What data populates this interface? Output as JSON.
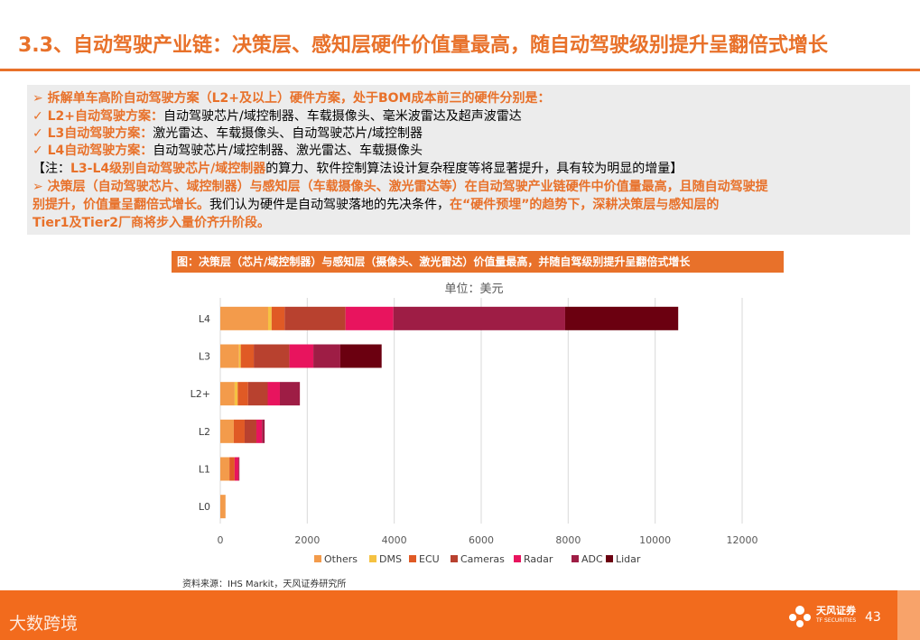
{
  "title": "3.3、自动驾驶产业链：决策层、感知层硬件价值量最高，随自动驾驶级别提升呈翻倍式增长",
  "panel": {
    "line1": "➢ 拆解单车高阶自动驾驶方案（L2+及以上）硬件方案，处于BOM成本前三的硬件分别是：",
    "line2_label": "✓ L2+自动驾驶方案：",
    "line2_text": "自动驾驶芯片/域控制器、车载摄像头、毫米波雷达及超声波雷达",
    "line3_label": "✓ L3自动驾驶方案：",
    "line3_text": "激光雷达、车载摄像头、自动驾驶芯片/域控制器",
    "line4_label": "✓ L4自动驾驶方案：",
    "line4_text": "自动驾驶芯片/域控制器、激光雷达、车载摄像头",
    "line5_a": "【注：",
    "line5_b": "L3-L4级别自动驾驶芯片/域控制器",
    "line5_c": "的算力、软件控制算法设计复杂程度等将显著提升，具有较为明显的增量】",
    "line6_a": "➢ 决策层（自动驾驶芯片、域控制器）与感知层（车载摄像头、激光雷达等）在自动驾驶产业链硬件中价值量最高，且随自动驾驶提",
    "line7_a": "别提升，价值量呈翻倍式增长。",
    "line7_b": "我们认为硬件是自动驾驶落地的先决条件，",
    "line7_c": "在“硬件预埋”的趋势下，深耕决策层与感知层的",
    "line8_a": "Tier1及Tier2厂商将步入量价齐升阶段。"
  },
  "caption": "图：决策层（芯片/域控制器）与感知层（摄像头、激光雷达）价值量最高，并随自驾级别提升呈翻倍式增长",
  "chart_data": {
    "type": "bar",
    "orientation": "horizontal",
    "stacked": true,
    "title": "单位：美元",
    "xlim": [
      0,
      12000
    ],
    "xticks": [
      0,
      2000,
      4000,
      6000,
      8000,
      10000,
      12000
    ],
    "xtick_labels": [
      "0",
      "2000",
      "4000",
      "6000",
      "8000",
      "10000",
      "12000"
    ],
    "categories": [
      "L4",
      "L3",
      "L2+",
      "L2",
      "L1",
      "L0"
    ],
    "series": [
      {
        "name": "Others",
        "color": "#F39B4B",
        "values": [
          1100,
          430,
          330,
          310,
          210,
          120
        ]
      },
      {
        "name": "DMS",
        "color": "#F5C242",
        "values": [
          80,
          40,
          70,
          0,
          0,
          0
        ]
      },
      {
        "name": "ECU",
        "color": "#E05A25",
        "values": [
          300,
          300,
          240,
          250,
          120,
          0
        ]
      },
      {
        "name": "Cameras",
        "color": "#B8412F",
        "values": [
          1400,
          820,
          450,
          270,
          0,
          0
        ]
      },
      {
        "name": "Radar",
        "color": "#E8145E",
        "values": [
          1100,
          550,
          280,
          130,
          90,
          0
        ]
      },
      {
        "name": "ADC",
        "color": "#9E1D45",
        "values": [
          3950,
          620,
          460,
          60,
          20,
          0
        ]
      },
      {
        "name": "Lidar",
        "color": "#6B0010",
        "values": [
          2600,
          950,
          0,
          0,
          0,
          0
        ]
      }
    ],
    "legend": "bottom",
    "grid": true
  },
  "source": "资料来源：IHS Markit，天风证券研究所",
  "footer": {
    "watermark": "大数跨境",
    "logo_text": "天风证券",
    "logo_sub": "TF SECURITIES",
    "page_number": "43"
  }
}
